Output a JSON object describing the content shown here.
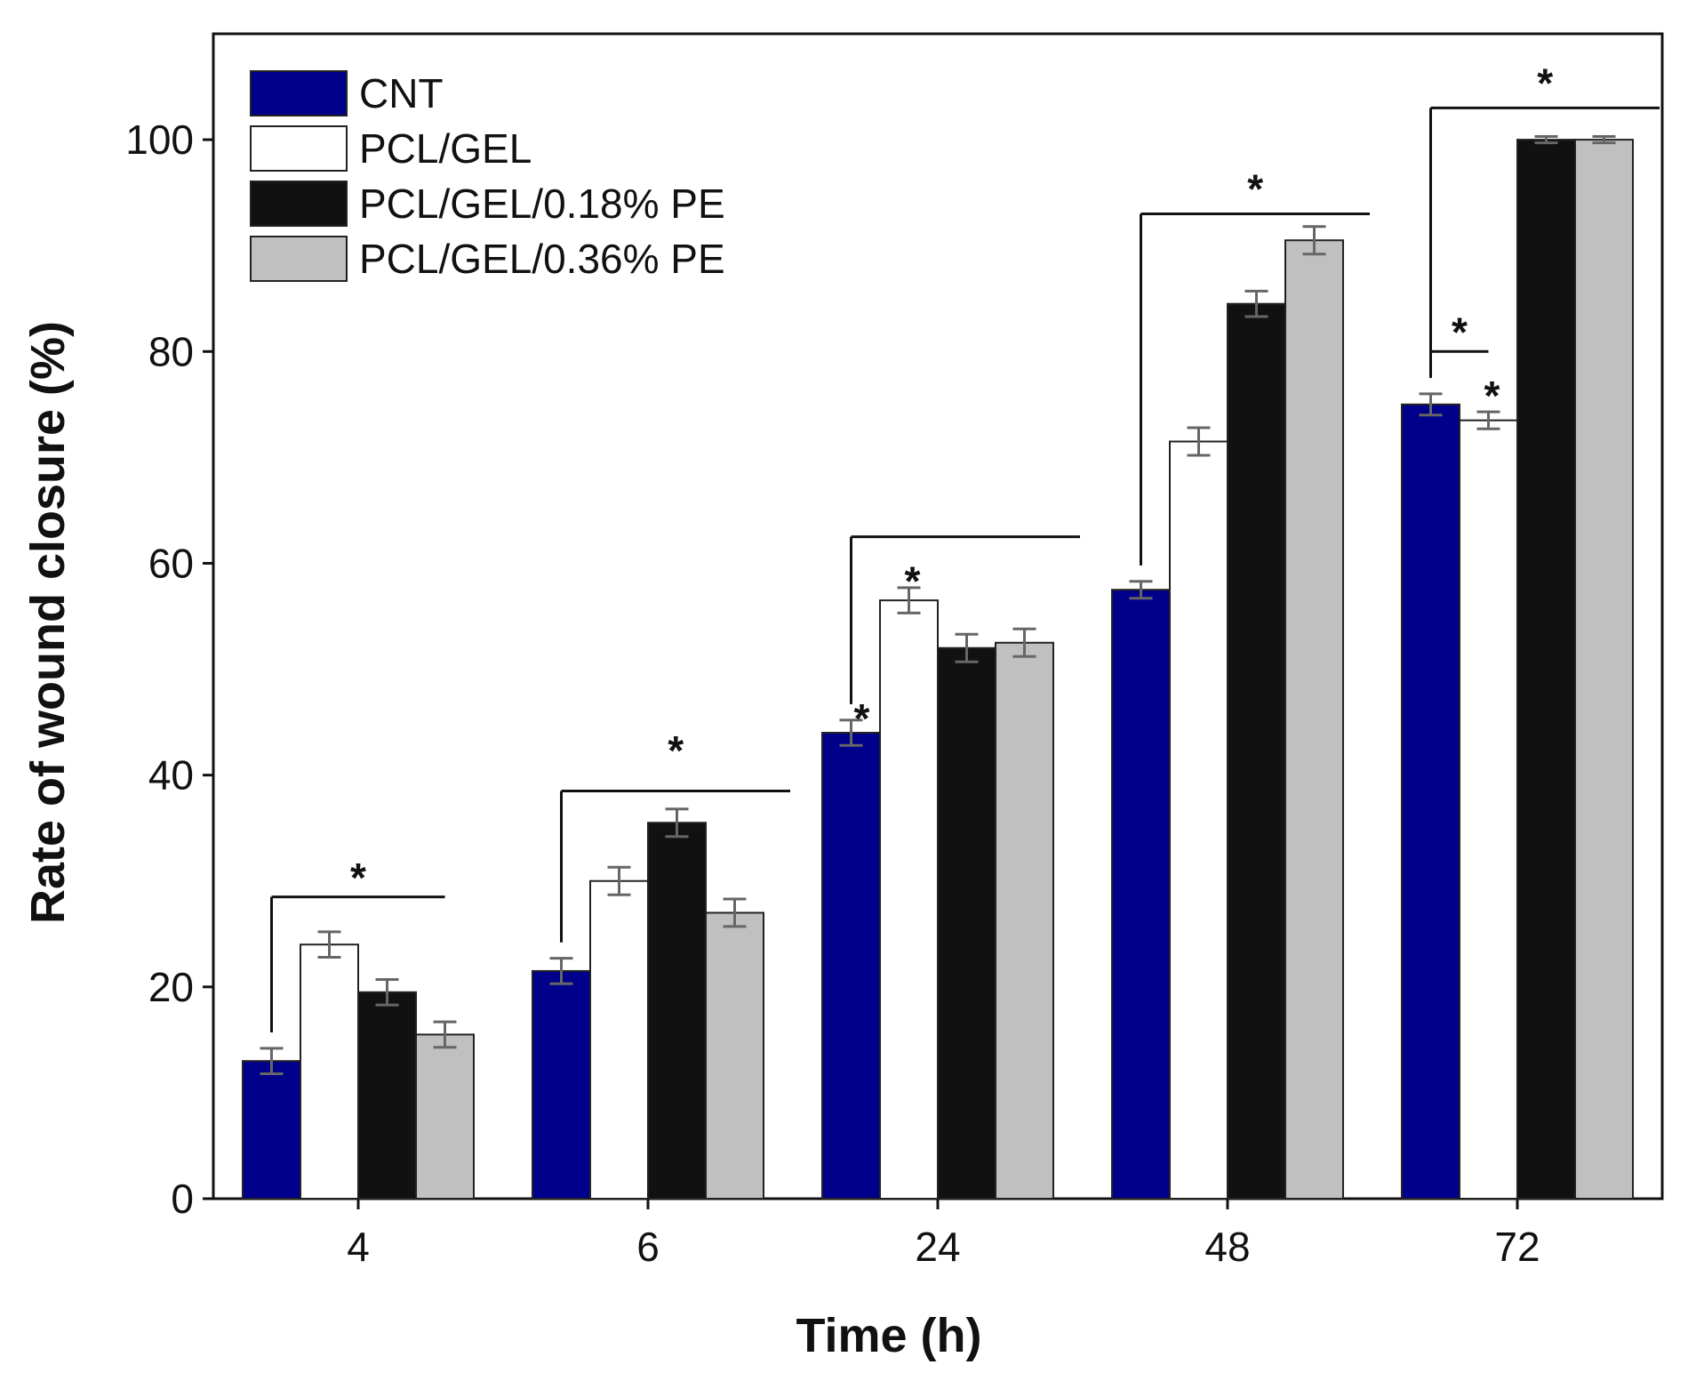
{
  "chart_data": {
    "type": "bar",
    "title": "",
    "xlabel": "Time (h)",
    "ylabel": "Rate of wound closure (%)",
    "ylim": [
      0,
      110
    ],
    "yticks": [
      0,
      20,
      40,
      60,
      80,
      100
    ],
    "categories": [
      "4",
      "6",
      "24",
      "48",
      "72"
    ],
    "legend_position": "top-left",
    "series": [
      {
        "name": "CNT",
        "color": "#00008b",
        "values": [
          13,
          21.5,
          44,
          57.5,
          75
        ],
        "errors": [
          1.2,
          1.2,
          1.2,
          0.8,
          1.0
        ]
      },
      {
        "name": "PCL/GEL",
        "color": "#ffffff",
        "values": [
          24,
          30,
          56.5,
          71.5,
          73.5
        ],
        "errors": [
          1.2,
          1.3,
          1.2,
          1.3,
          0.8
        ]
      },
      {
        "name": "PCL/GEL/0.18% PE",
        "color": "#111111",
        "values": [
          19.5,
          35.5,
          52,
          84.5,
          100
        ],
        "errors": [
          1.2,
          1.3,
          1.3,
          1.2,
          0.3
        ]
      },
      {
        "name": "PCL/GEL/0.36% PE",
        "color": "#c0c0c0",
        "values": [
          15.5,
          27,
          52.5,
          90.5,
          100
        ],
        "errors": [
          1.2,
          1.3,
          1.3,
          1.3,
          0.3
        ]
      }
    ],
    "significance": [
      {
        "category": 0,
        "from_series": 0,
        "bracket_to_series": 3,
        "bracket_level": 28.5,
        "star_level": 30.5,
        "symbol": "*"
      },
      {
        "category": 1,
        "from_series": 0,
        "bracket_to_series": 4,
        "bracket_level": 38.5,
        "star_level": 42.5,
        "symbol": "*"
      },
      {
        "category": 2,
        "from_series": 0,
        "bracket_to_series": 4,
        "bracket_level": 62.5,
        "star_level": 45.5,
        "symbol": "*"
      },
      {
        "category": 2,
        "from_series": 1,
        "star_only": true,
        "star_level": 58.5,
        "symbol": "*"
      },
      {
        "category": 3,
        "from_series": 0,
        "bracket_to_series": 4,
        "bracket_level": 93,
        "star_level": 95.5,
        "symbol": "*"
      },
      {
        "category": 4,
        "from_series": 0,
        "bracket_to_series": 4,
        "bracket_level": 103,
        "star_level": 105.5,
        "symbol": "*"
      },
      {
        "category": 4,
        "from_series": 0,
        "bracket_to_series": 1,
        "bracket_level": 80,
        "star_level": 82,
        "symbol": "*"
      },
      {
        "category": 4,
        "from_series": 1,
        "star_only": true,
        "star_level": 76,
        "symbol": "*"
      }
    ]
  }
}
